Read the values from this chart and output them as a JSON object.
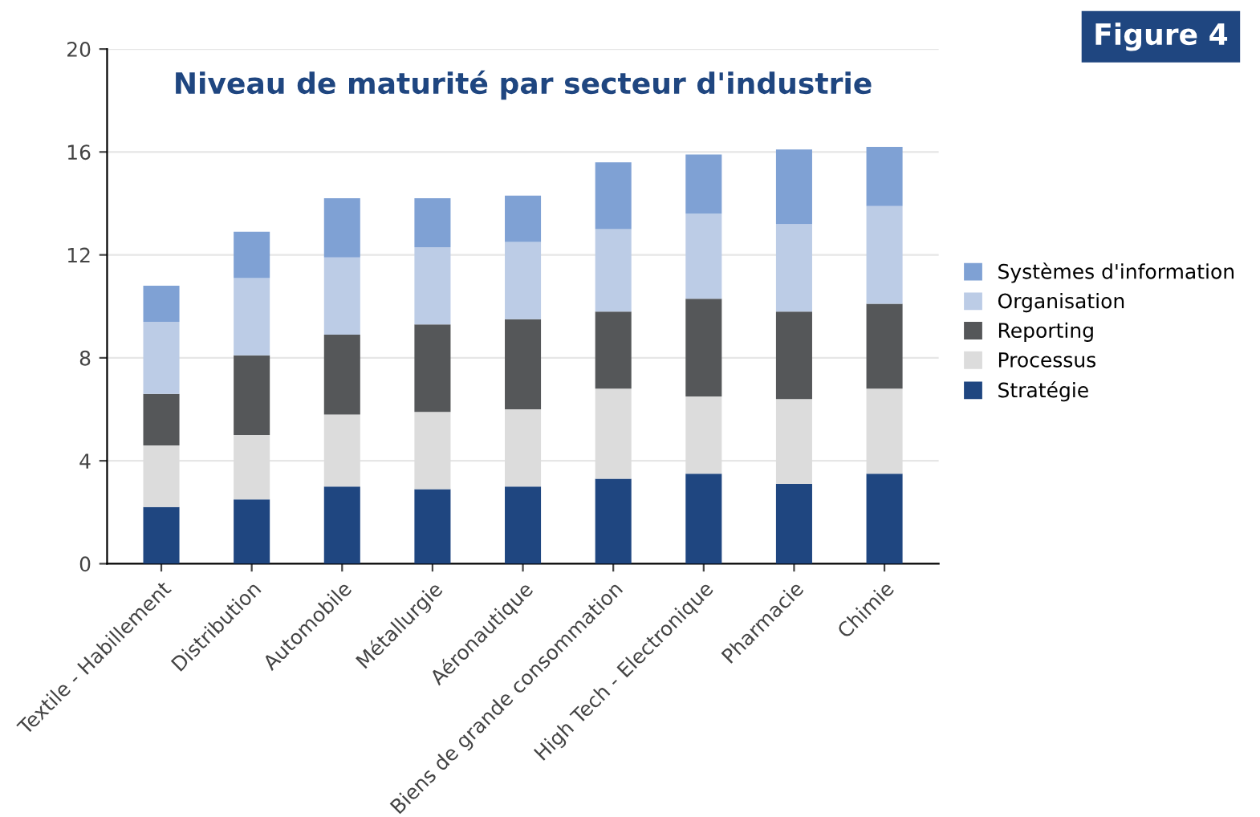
{
  "chart_data": {
    "type": "bar",
    "stacked": true,
    "title": "Niveau de maturité par secteur d'industrie",
    "annotations": [
      "Figure 4"
    ],
    "categories": [
      "Textile - Habillement",
      "Distribution",
      "Automobile",
      "Métallurgie",
      "Aéronautique",
      "Biens de grande consommation",
      "High Tech - Electronique",
      "Pharmacie",
      "Chimie"
    ],
    "series": [
      {
        "name": "Stratégie",
        "color": "#1f4680",
        "values": [
          2.2,
          2.5,
          3.0,
          2.9,
          3.0,
          3.3,
          3.5,
          3.1,
          3.5
        ]
      },
      {
        "name": "Processus",
        "color": "#dcdcdc",
        "values": [
          2.4,
          2.5,
          2.8,
          3.0,
          3.0,
          3.5,
          3.0,
          3.3,
          3.3
        ]
      },
      {
        "name": "Reporting",
        "color": "#555759",
        "values": [
          2.0,
          3.1,
          3.1,
          3.4,
          3.5,
          3.0,
          3.8,
          3.4,
          3.3
        ]
      },
      {
        "name": "Organisation",
        "color": "#bccce6",
        "values": [
          2.8,
          3.0,
          3.0,
          3.0,
          3.0,
          3.2,
          3.3,
          3.4,
          3.8
        ]
      },
      {
        "name": "Systèmes d'information",
        "color": "#7fa1d4",
        "values": [
          1.4,
          1.8,
          2.3,
          1.9,
          1.8,
          2.6,
          2.3,
          2.9,
          2.3
        ]
      }
    ],
    "ylim": [
      0,
      20
    ],
    "yticks": [
      0,
      4,
      8,
      12,
      16,
      20
    ],
    "grid": "y",
    "legend": "right"
  }
}
